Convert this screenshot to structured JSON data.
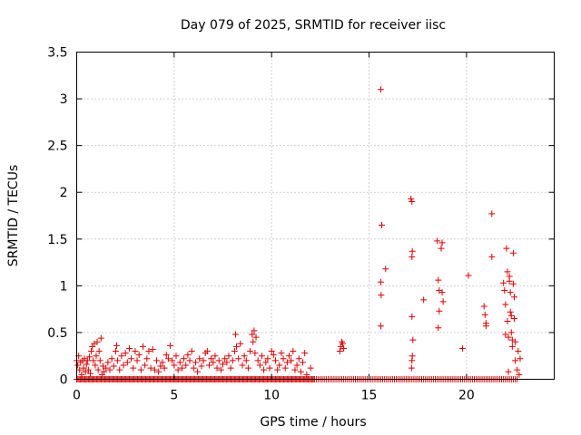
{
  "chart_data": {
    "type": "scatter",
    "title": "Day 079 of 2025, SRMTID for receiver iisc",
    "xlabel": "GPS time / hours",
    "ylabel": "SRMTID / TECUs",
    "xlim": [
      0,
      24.5
    ],
    "ylim": [
      0,
      3.5
    ],
    "xticks": [
      0,
      5,
      10,
      15,
      20
    ],
    "xtick_labels": [
      "0",
      "5",
      "10",
      "15",
      "20"
    ],
    "yticks": [
      0,
      0.5,
      1,
      1.5,
      2,
      2.5,
      3,
      3.5
    ],
    "ytick_labels": [
      "0",
      "0.5",
      "1",
      "1.5",
      "2",
      "2.5",
      "3",
      "3.5"
    ],
    "grid": true,
    "marker": "+",
    "series": [
      {
        "name": "iisc",
        "color": "#e00000",
        "points": [
          [
            0.0,
            0.2
          ],
          [
            0.05,
            0.15
          ],
          [
            0.1,
            0.25
          ],
          [
            0.15,
            0.1
          ],
          [
            0.2,
            0.18
          ],
          [
            0.25,
            0.05
          ],
          [
            0.3,
            0.2
          ],
          [
            0.35,
            0.12
          ],
          [
            0.4,
            0.22
          ],
          [
            0.45,
            0.08
          ],
          [
            0.5,
            0.16
          ],
          [
            0.55,
            0.2
          ],
          [
            0.6,
            0.1
          ],
          [
            0.65,
            0.24
          ],
          [
            0.7,
            0.06
          ],
          [
            0.75,
            0.3
          ],
          [
            0.8,
            0.35
          ],
          [
            0.85,
            0.2
          ],
          [
            0.9,
            0.38
          ],
          [
            0.95,
            0.15
          ],
          [
            1.0,
            0.25
          ],
          [
            1.05,
            0.4
          ],
          [
            1.1,
            0.1
          ],
          [
            1.15,
            0.3
          ],
          [
            1.2,
            0.2
          ],
          [
            1.25,
            0.44
          ],
          [
            1.3,
            0.05
          ],
          [
            1.35,
            0.14
          ],
          [
            1.4,
            0.08
          ],
          [
            1.5,
            0.12
          ],
          [
            1.6,
            0.18
          ],
          [
            1.7,
            0.1
          ],
          [
            1.8,
            0.22
          ],
          [
            1.9,
            0.14
          ],
          [
            2.0,
            0.3
          ],
          [
            2.05,
            0.36
          ],
          [
            2.1,
            0.2
          ],
          [
            2.2,
            0.1
          ],
          [
            2.3,
            0.25
          ],
          [
            2.4,
            0.15
          ],
          [
            2.5,
            0.28
          ],
          [
            2.6,
            0.18
          ],
          [
            2.7,
            0.33
          ],
          [
            2.8,
            0.22
          ],
          [
            2.9,
            0.12
          ],
          [
            3.0,
            0.3
          ],
          [
            3.1,
            0.2
          ],
          [
            3.2,
            0.26
          ],
          [
            3.3,
            0.1
          ],
          [
            3.4,
            0.35
          ],
          [
            3.5,
            0.15
          ],
          [
            3.6,
            0.22
          ],
          [
            3.7,
            0.3
          ],
          [
            3.8,
            0.12
          ],
          [
            3.9,
            0.32
          ],
          [
            4.0,
            0.1
          ],
          [
            4.1,
            0.2
          ],
          [
            4.2,
            0.08
          ],
          [
            4.3,
            0.14
          ],
          [
            4.4,
            0.18
          ],
          [
            4.5,
            0.12
          ],
          [
            4.6,
            0.26
          ],
          [
            4.7,
            0.22
          ],
          [
            4.8,
            0.36
          ],
          [
            4.9,
            0.2
          ],
          [
            5.0,
            0.15
          ],
          [
            5.1,
            0.25
          ],
          [
            5.2,
            0.1
          ],
          [
            5.3,
            0.18
          ],
          [
            5.4,
            0.12
          ],
          [
            5.5,
            0.22
          ],
          [
            5.6,
            0.15
          ],
          [
            5.7,
            0.26
          ],
          [
            5.8,
            0.2
          ],
          [
            5.9,
            0.3
          ],
          [
            6.0,
            0.12
          ],
          [
            6.1,
            0.18
          ],
          [
            6.2,
            0.08
          ],
          [
            6.3,
            0.22
          ],
          [
            6.4,
            0.14
          ],
          [
            6.5,
            0.2
          ],
          [
            6.6,
            0.28
          ],
          [
            6.7,
            0.3
          ],
          [
            6.8,
            0.15
          ],
          [
            6.9,
            0.22
          ],
          [
            7.0,
            0.18
          ],
          [
            7.1,
            0.25
          ],
          [
            7.2,
            0.12
          ],
          [
            7.3,
            0.2
          ],
          [
            7.4,
            0.1
          ],
          [
            7.5,
            0.16
          ],
          [
            7.6,
            0.22
          ],
          [
            7.7,
            0.18
          ],
          [
            7.8,
            0.25
          ],
          [
            7.9,
            0.12
          ],
          [
            8.0,
            0.2
          ],
          [
            8.1,
            0.3
          ],
          [
            8.15,
            0.48
          ],
          [
            8.2,
            0.35
          ],
          [
            8.3,
            0.22
          ],
          [
            8.4,
            0.38
          ],
          [
            8.5,
            0.15
          ],
          [
            8.6,
            0.25
          ],
          [
            8.7,
            0.2
          ],
          [
            8.8,
            0.12
          ],
          [
            8.9,
            0.3
          ],
          [
            9.0,
            0.48
          ],
          [
            9.05,
            0.4
          ],
          [
            9.1,
            0.52
          ],
          [
            9.15,
            0.28
          ],
          [
            9.2,
            0.45
          ],
          [
            9.3,
            0.2
          ],
          [
            9.4,
            0.15
          ],
          [
            9.5,
            0.25
          ],
          [
            9.6,
            0.1
          ],
          [
            9.7,
            0.18
          ],
          [
            9.8,
            0.22
          ],
          [
            9.9,
            0.12
          ],
          [
            10.0,
            0.3
          ],
          [
            10.1,
            0.26
          ],
          [
            10.2,
            0.2
          ],
          [
            10.3,
            0.1
          ],
          [
            10.4,
            0.15
          ],
          [
            10.5,
            0.28
          ],
          [
            10.6,
            0.22
          ],
          [
            10.7,
            0.12
          ],
          [
            10.8,
            0.18
          ],
          [
            10.9,
            0.25
          ],
          [
            11.0,
            0.2
          ],
          [
            11.1,
            0.3
          ],
          [
            11.2,
            0.1
          ],
          [
            11.3,
            0.15
          ],
          [
            11.4,
            0.22
          ],
          [
            11.5,
            0.08
          ],
          [
            11.6,
            0.18
          ],
          [
            11.7,
            0.28
          ],
          [
            11.8,
            0.05
          ],
          [
            12.0,
            0.12
          ],
          [
            13.5,
            0.3
          ],
          [
            13.55,
            0.35
          ],
          [
            13.6,
            0.4
          ],
          [
            13.65,
            0.38
          ],
          [
            13.7,
            0.33
          ],
          [
            15.6,
            3.1
          ],
          [
            15.65,
            1.65
          ],
          [
            15.6,
            1.04
          ],
          [
            15.62,
            0.9
          ],
          [
            15.6,
            0.57
          ],
          [
            15.85,
            1.18
          ],
          [
            17.15,
            1.93
          ],
          [
            17.2,
            1.9
          ],
          [
            17.22,
            1.37
          ],
          [
            17.2,
            1.31
          ],
          [
            17.2,
            0.67
          ],
          [
            17.25,
            0.42
          ],
          [
            17.22,
            0.25
          ],
          [
            17.2,
            0.2
          ],
          [
            17.18,
            0.12
          ],
          [
            17.8,
            0.85
          ],
          [
            18.5,
            1.48
          ],
          [
            18.55,
            1.06
          ],
          [
            18.6,
            0.95
          ],
          [
            18.6,
            0.73
          ],
          [
            18.55,
            0.55
          ],
          [
            18.7,
            1.4
          ],
          [
            18.75,
            1.46
          ],
          [
            18.75,
            0.93
          ],
          [
            18.8,
            0.83
          ],
          [
            19.8,
            0.33
          ],
          [
            20.1,
            1.11
          ],
          [
            20.9,
            0.78
          ],
          [
            20.95,
            0.69
          ],
          [
            21.0,
            0.6
          ],
          [
            21.0,
            0.57
          ],
          [
            21.3,
            1.77
          ],
          [
            21.3,
            1.31
          ],
          [
            21.9,
            1.03
          ],
          [
            21.95,
            0.95
          ],
          [
            22.0,
            0.8
          ],
          [
            22.0,
            0.48
          ],
          [
            22.05,
            1.4
          ],
          [
            22.1,
            1.15
          ],
          [
            22.1,
            0.62
          ],
          [
            22.15,
            0.45
          ],
          [
            22.15,
            0.08
          ],
          [
            22.2,
            1.1
          ],
          [
            22.2,
            1.05
          ],
          [
            22.25,
            0.93
          ],
          [
            22.25,
            0.72
          ],
          [
            22.3,
            0.68
          ],
          [
            22.3,
            0.5
          ],
          [
            22.35,
            0.42
          ],
          [
            22.35,
            0.35
          ],
          [
            22.4,
            1.35
          ],
          [
            22.4,
            1.02
          ],
          [
            22.45,
            0.88
          ],
          [
            22.45,
            0.65
          ],
          [
            22.5,
            0.4
          ],
          [
            22.5,
            0.2
          ],
          [
            22.6,
            0.1
          ],
          [
            22.65,
            0.3
          ],
          [
            22.7,
            0.05
          ],
          [
            22.75,
            0.22
          ]
        ],
        "zero_runs": [
          [
            0.0,
            12.2,
            0.06
          ],
          [
            12.2,
            22.7,
            0.1
          ]
        ]
      }
    ]
  }
}
